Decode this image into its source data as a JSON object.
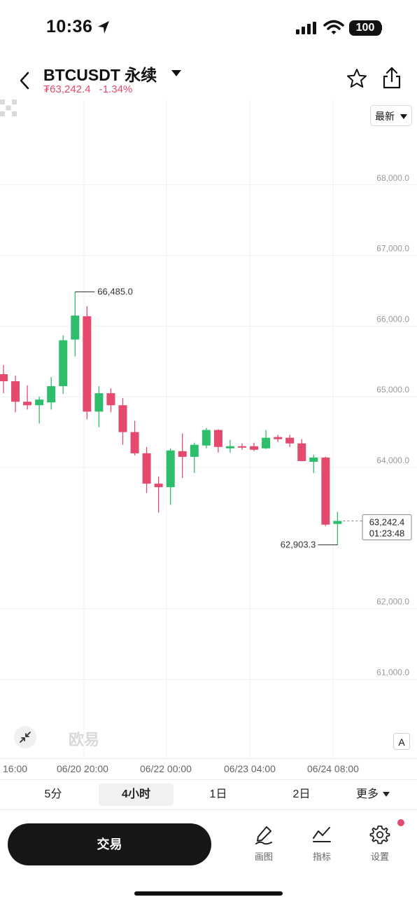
{
  "status_bar": {
    "time": "10:36",
    "battery": "100"
  },
  "header": {
    "pair": "BTCUSDT 永续",
    "price": "₮63,242.4",
    "change": "-1.34%",
    "price_color": "#e34a6d"
  },
  "chart_controls": {
    "latest_label": "最新",
    "auto_label": "A",
    "watermark": "欧易"
  },
  "chart_data": {
    "type": "candlestick",
    "interval": "4小时",
    "y_ticks": [
      "68,000.0",
      "67,000.0",
      "66,000.0",
      "65,000.0",
      "64,000.0",
      "62,000.0",
      "61,000.0"
    ],
    "y_tick_values": [
      68000,
      67000,
      66000,
      65000,
      64000,
      62000,
      61000
    ],
    "x_ticks": [
      "16:00",
      "06/20 20:00",
      "06/22 00:00",
      "06/23 04:00",
      "06/24 08:00"
    ],
    "up_color": "#2ebd6b",
    "down_color": "#e34a6d",
    "high_label": "66,485.0",
    "low_label": "62,903.3",
    "current_price_label": "63,242.4",
    "countdown_label": "01:23:48",
    "candles": [
      {
        "o": 65320,
        "h": 65450,
        "l": 65050,
        "c": 65220
      },
      {
        "o": 65220,
        "h": 65300,
        "l": 64780,
        "c": 64930
      },
      {
        "o": 64930,
        "h": 65160,
        "l": 64820,
        "c": 64880
      },
      {
        "o": 64880,
        "h": 65000,
        "l": 64620,
        "c": 64960
      },
      {
        "o": 64920,
        "h": 65280,
        "l": 64820,
        "c": 65150
      },
      {
        "o": 65150,
        "h": 65870,
        "l": 65040,
        "c": 65800
      },
      {
        "o": 65810,
        "h": 66485,
        "l": 65570,
        "c": 66150
      },
      {
        "o": 66140,
        "h": 66280,
        "l": 64680,
        "c": 64790
      },
      {
        "o": 64790,
        "h": 65150,
        "l": 64570,
        "c": 65050
      },
      {
        "o": 65050,
        "h": 65120,
        "l": 64780,
        "c": 64880
      },
      {
        "o": 64880,
        "h": 64980,
        "l": 64320,
        "c": 64500
      },
      {
        "o": 64500,
        "h": 64660,
        "l": 64170,
        "c": 64200
      },
      {
        "o": 64200,
        "h": 64290,
        "l": 63640,
        "c": 63770
      },
      {
        "o": 63770,
        "h": 63870,
        "l": 63360,
        "c": 63720
      },
      {
        "o": 63720,
        "h": 64270,
        "l": 63470,
        "c": 64240
      },
      {
        "o": 64230,
        "h": 64480,
        "l": 63850,
        "c": 64150
      },
      {
        "o": 64150,
        "h": 64350,
        "l": 63920,
        "c": 64320
      },
      {
        "o": 64310,
        "h": 64560,
        "l": 64270,
        "c": 64530
      },
      {
        "o": 64530,
        "h": 64540,
        "l": 64210,
        "c": 64290
      },
      {
        "o": 64270,
        "h": 64390,
        "l": 64210,
        "c": 64300
      },
      {
        "o": 64300,
        "h": 64340,
        "l": 64250,
        "c": 64290
      },
      {
        "o": 64300,
        "h": 64350,
        "l": 64230,
        "c": 64250
      },
      {
        "o": 64270,
        "h": 64530,
        "l": 64260,
        "c": 64420
      },
      {
        "o": 64430,
        "h": 64460,
        "l": 64360,
        "c": 64400
      },
      {
        "o": 64420,
        "h": 64460,
        "l": 64290,
        "c": 64340
      },
      {
        "o": 64340,
        "h": 64400,
        "l": 64090,
        "c": 64090
      },
      {
        "o": 64080,
        "h": 64180,
        "l": 63920,
        "c": 64140
      },
      {
        "o": 64140,
        "h": 64150,
        "l": 63170,
        "c": 63190
      },
      {
        "o": 63200,
        "h": 63370,
        "l": 62903.3,
        "c": 63242.4
      }
    ]
  },
  "intervals": [
    {
      "label": "5分"
    },
    {
      "label": "4小时",
      "active": true
    },
    {
      "label": "1日"
    },
    {
      "label": "2日"
    },
    {
      "label": "更多"
    }
  ],
  "bottom": {
    "trade": "交易",
    "tools": [
      {
        "label": "画图"
      },
      {
        "label": "指标"
      },
      {
        "label": "设置"
      }
    ]
  }
}
